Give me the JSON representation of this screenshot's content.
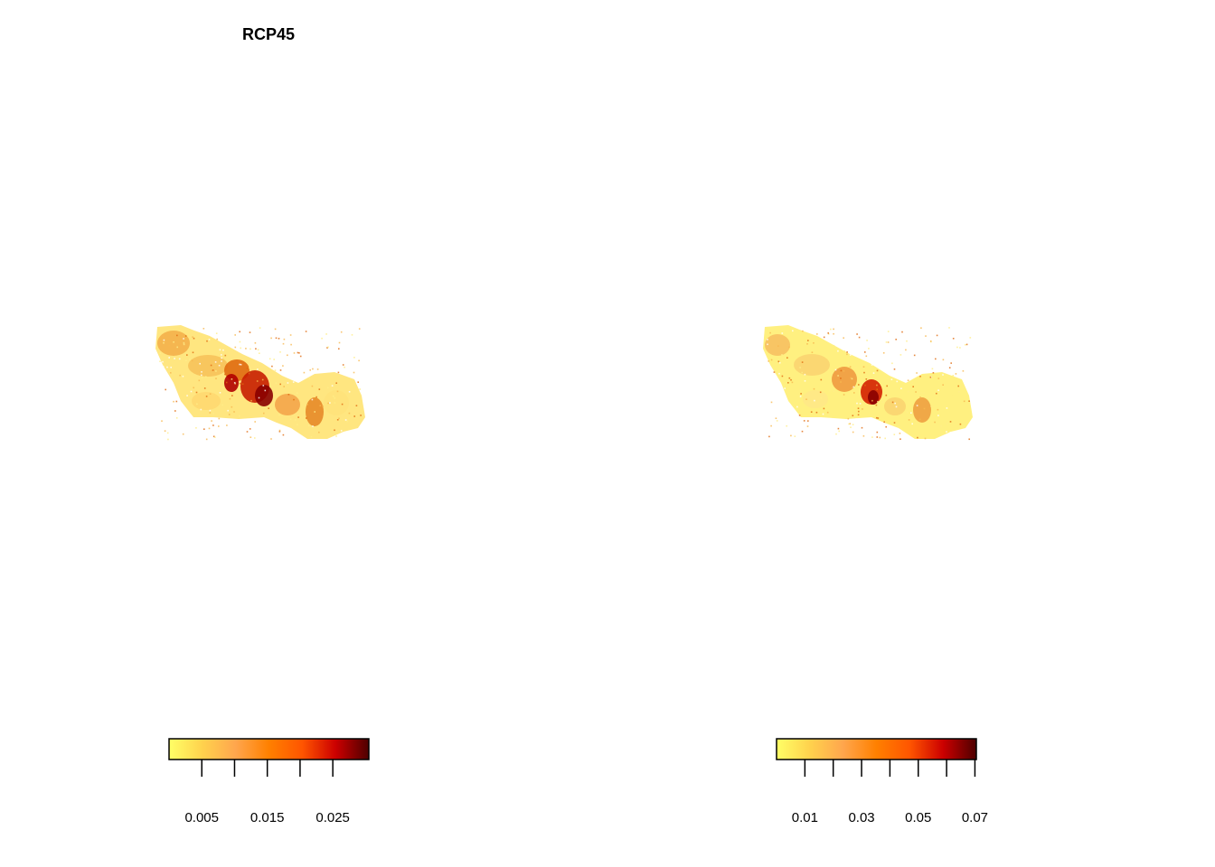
{
  "panels": [
    {
      "title": "RCP45",
      "legend": {
        "ticks": [
          "0.005",
          "0.015",
          "0.025"
        ],
        "minor_ticks": [
          0.005,
          0.01,
          0.015,
          0.02,
          0.025
        ],
        "range": [
          0.0,
          0.0305
        ],
        "colors": [
          "#ffff66",
          "#ffd24d",
          "#ffa64d",
          "#ff8000",
          "#ff5500",
          "#cc0000",
          "#4d0000"
        ]
      }
    },
    {
      "title": "",
      "legend": {
        "ticks": [
          "0.01",
          "0.03",
          "0.05",
          "0.07"
        ],
        "minor_ticks": [
          0.01,
          0.02,
          0.03,
          0.04,
          0.05,
          0.06,
          0.07
        ],
        "range": [
          0.0,
          0.0705
        ],
        "colors": [
          "#ffff66",
          "#ffd24d",
          "#ffa64d",
          "#ff8000",
          "#ff5500",
          "#cc0000",
          "#4d0000"
        ]
      }
    }
  ]
}
